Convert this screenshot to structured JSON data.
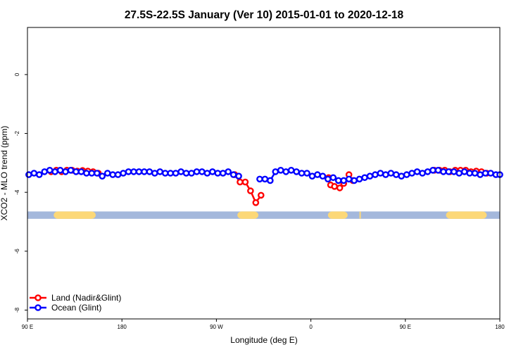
{
  "chart_data": {
    "type": "line",
    "title": "27.5S-22.5S January (Ver 10)   2015-01-01 to 2020-12-18",
    "xlabel": "Longitude (deg E)",
    "ylabel": "XCO2 - MLO trend (ppm)",
    "xlim": [
      -90,
      270
    ],
    "ylim": [
      -8.3,
      1.6
    ],
    "xticks": [
      {
        "value": -90,
        "label": "90 E"
      },
      {
        "value": -18,
        "label": "180"
      },
      {
        "value": 54,
        "label": "90 W"
      },
      {
        "value": 126,
        "label": "0"
      },
      {
        "value": 198,
        "label": "90 E"
      },
      {
        "value": 270,
        "label": "180"
      }
    ],
    "yticks": [
      {
        "value": 0,
        "label": "0"
      },
      {
        "value": -2,
        "label": "-2"
      },
      {
        "value": -4,
        "label": "-4"
      },
      {
        "value": -6,
        "label": "-6"
      },
      {
        "value": -8,
        "label": "-8"
      }
    ],
    "legend": {
      "position": "bottom-left"
    },
    "colors": {
      "land": "#ff0000",
      "ocean": "#0000ff",
      "ocean_band": "#a4b8dc",
      "land_band": "#fcd878"
    },
    "band": {
      "y_range": [
        -4.65,
        -4.9
      ],
      "land_segments": [
        [
          -70,
          -38
        ],
        [
          70,
          86
        ],
        [
          139,
          154
        ],
        [
          163,
          164
        ],
        [
          229,
          260
        ]
      ]
    },
    "series": [
      {
        "name": "Land (Nadir&Glint)",
        "key": "land",
        "x": [
          -72,
          -68,
          -64,
          -60,
          -56,
          -52,
          -48,
          -44,
          -40,
          -36,
          68,
          72,
          76,
          80,
          84,
          88,
          139.5,
          141,
          144,
          148,
          151,
          155,
          158,
          220,
          224,
          228,
          232,
          236,
          240,
          244,
          248,
          252,
          256,
          260
        ],
        "y": [
          -3.3,
          -3.25,
          -3.3,
          -3.25,
          -3.25,
          -3.28,
          -3.26,
          -3.28,
          -3.3,
          -3.35,
          -3.4,
          -3.65,
          -3.65,
          -3.95,
          -4.35,
          -4.1,
          -3.5,
          -3.75,
          -3.8,
          -3.85,
          -3.7,
          -3.4,
          -3.6,
          -3.25,
          -3.25,
          -3.25,
          -3.3,
          -3.25,
          -3.25,
          -3.25,
          -3.3,
          -3.28,
          -3.3,
          -3.35
        ]
      },
      {
        "name": "Ocean (Glint)",
        "key": "ocean",
        "x": [
          -89,
          -85,
          -81,
          -77,
          -73,
          -69,
          -65,
          -61,
          -57,
          -53,
          -49,
          -45,
          -41,
          -37,
          -33,
          -29,
          -25,
          -21,
          -17,
          -13,
          -9,
          -5,
          -1,
          3,
          7,
          11,
          15,
          19,
          23,
          27,
          31,
          35,
          39,
          43,
          47,
          51,
          55,
          59,
          63,
          67,
          71,
          87,
          91,
          95,
          99,
          103,
          107,
          111,
          115,
          119,
          123,
          127,
          131,
          135,
          139,
          143,
          147,
          151,
          155,
          159,
          163,
          167,
          171,
          175,
          179,
          183,
          187,
          191,
          195,
          199,
          203,
          207,
          211,
          215,
          219,
          223,
          227,
          231,
          235,
          239,
          243,
          247,
          251,
          255,
          259,
          263,
          267,
          270
        ],
        "y": [
          -3.4,
          -3.35,
          -3.4,
          -3.3,
          -3.25,
          -3.3,
          -3.25,
          -3.3,
          -3.25,
          -3.3,
          -3.3,
          -3.35,
          -3.35,
          -3.35,
          -3.45,
          -3.35,
          -3.4,
          -3.4,
          -3.35,
          -3.3,
          -3.3,
          -3.3,
          -3.3,
          -3.3,
          -3.35,
          -3.3,
          -3.35,
          -3.35,
          -3.35,
          -3.3,
          -3.35,
          -3.35,
          -3.3,
          -3.3,
          -3.35,
          -3.3,
          -3.35,
          -3.35,
          -3.3,
          -3.4,
          -3.45,
          -3.55,
          -3.55,
          -3.6,
          -3.3,
          -3.25,
          -3.3,
          -3.25,
          -3.3,
          -3.35,
          -3.35,
          -3.45,
          -3.4,
          -3.45,
          -3.55,
          -3.5,
          -3.6,
          -3.6,
          -3.55,
          -3.6,
          -3.55,
          -3.5,
          -3.45,
          -3.4,
          -3.35,
          -3.4,
          -3.35,
          -3.4,
          -3.45,
          -3.4,
          -3.35,
          -3.3,
          -3.35,
          -3.3,
          -3.25,
          -3.25,
          -3.3,
          -3.3,
          -3.3,
          -3.35,
          -3.3,
          -3.35,
          -3.35,
          -3.4,
          -3.35,
          -3.35,
          -3.4,
          -3.4
        ]
      }
    ]
  }
}
